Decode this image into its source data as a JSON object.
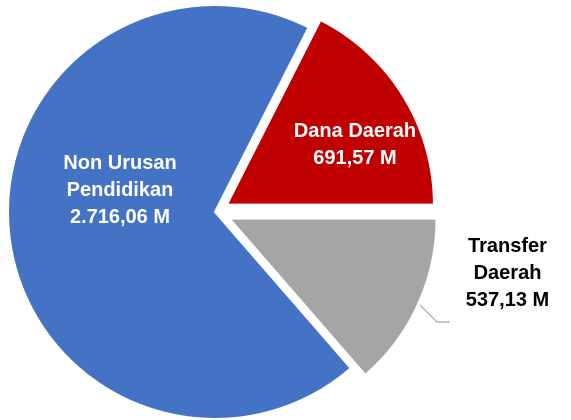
{
  "chart_data": {
    "type": "pie",
    "categories": [
      "Non Urusan Pendidikan",
      "Dana Daerah",
      "Transfer Daerah"
    ],
    "values": [
      2716.06,
      691.57,
      537.13
    ],
    "value_labels": [
      "2.716,06 M",
      "691,57 M",
      "537,13 M"
    ],
    "colors": [
      "#4472c4",
      "#c00000",
      "#a5a5a5"
    ]
  }
}
